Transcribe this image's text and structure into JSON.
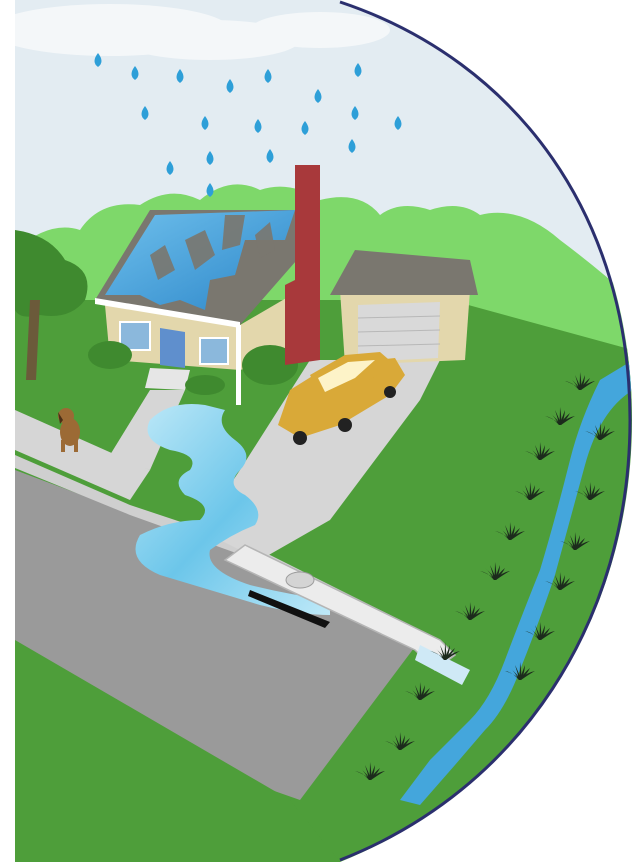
{
  "illustration": {
    "subject": "stormwater-runoff",
    "colors": {
      "sky": "#e3ecf2",
      "cloud": "#f4f7f9",
      "rain": "#2e9fd8",
      "trees": "#7ed86a",
      "lawn": "#4e9e3a",
      "lawn_dark": "#3f8a2f",
      "pavement": "#9a9a9a",
      "sidewalk": "#d6d6d6",
      "runoff_water": "#8fd3ef",
      "stream": "#44a6dc",
      "house_wall": "#e3d7ac",
      "roof": "#7a776f",
      "roof_water": "#4aa8e0",
      "chimney": "#a8393b",
      "garage_door": "#d9d9d9",
      "car": "#d9a938",
      "dog": "#9c6a35",
      "outline": "#2b2f6e"
    },
    "icons": [
      "rain-drop-icon",
      "house-icon",
      "car-icon",
      "dog-icon",
      "storm-drain-icon",
      "stream-icon",
      "plant-icon"
    ]
  }
}
